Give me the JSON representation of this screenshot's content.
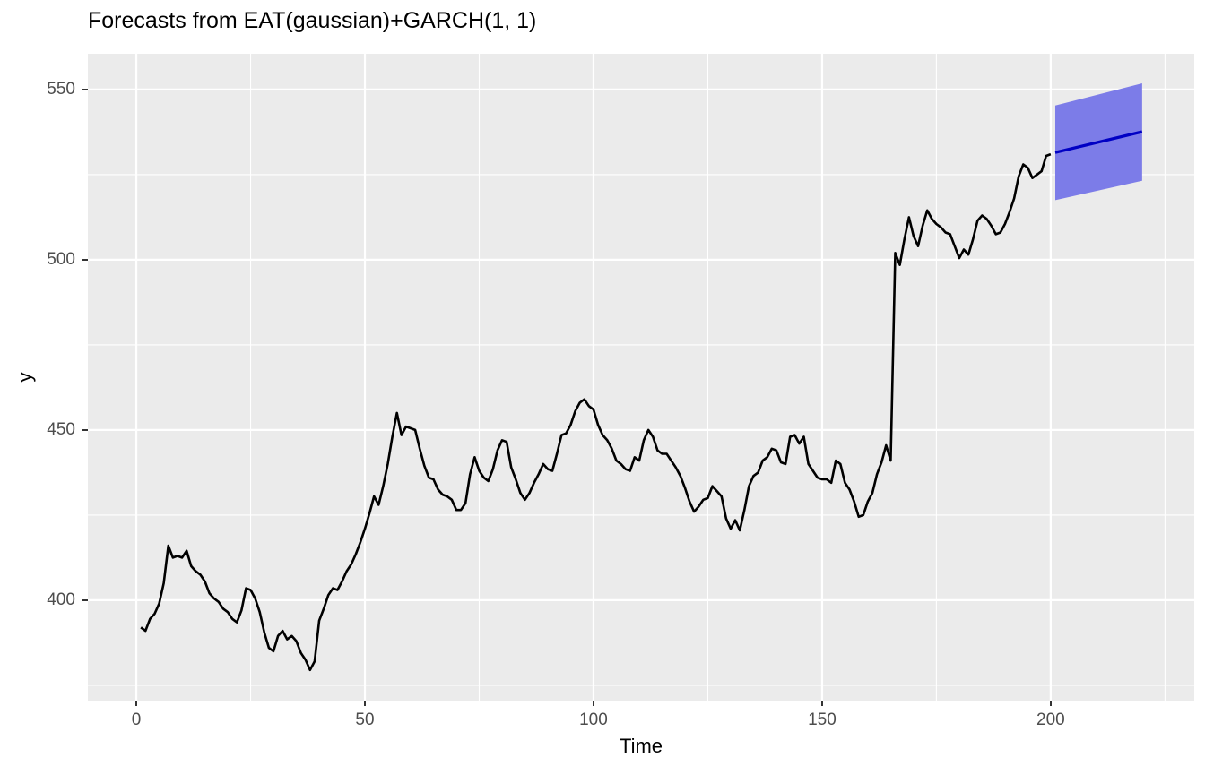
{
  "title": "Forecasts from EAT(gaussian)+GARCH(1, 1)",
  "colors": {
    "panel_background": "#EBEBEB",
    "grid_major": "#FFFFFF",
    "grid_minor": "#FFFFFF",
    "observed_line": "#000000",
    "forecast_ribbon": "#7C7CE8",
    "forecast_line": "#0000C4",
    "tick_label": "#4D4D4D",
    "tick_mark": "#333333",
    "title_color": "#000000"
  },
  "chart_data": {
    "type": "line",
    "title": "Forecasts from EAT(gaussian)+GARCH(1, 1)",
    "xlabel": "Time",
    "ylabel": "y",
    "xlim": [
      -10.6,
      231.4
    ],
    "ylim": [
      370.5,
      560.5
    ],
    "x_major_ticks": [
      0,
      50,
      100,
      150,
      200
    ],
    "x_minor_ticks": [
      25,
      75,
      125,
      175,
      225
    ],
    "y_major_ticks": [
      400,
      450,
      500,
      550
    ],
    "y_minor_ticks": [
      375,
      425,
      475,
      525
    ],
    "grid": "on",
    "legend_position": "none",
    "series": [
      {
        "name": "observed",
        "x_start": 1,
        "x_step": 1,
        "values": [
          392,
          391,
          394.5,
          396,
          399,
          405,
          416,
          412.5,
          413,
          412.5,
          414.5,
          410,
          408.5,
          407.5,
          405.5,
          402,
          400.5,
          399.5,
          397.5,
          396.5,
          394.5,
          393.5,
          397,
          403.5,
          403,
          400.5,
          396.5,
          390.5,
          386,
          385,
          389.5,
          391,
          388.5,
          389.5,
          388,
          384.5,
          382.5,
          379.5,
          382,
          394,
          397.5,
          401.5,
          403.5,
          403,
          405.5,
          408.5,
          410.5,
          413.5,
          417,
          421,
          425.5,
          430.5,
          428,
          433.5,
          440,
          448,
          455,
          448.5,
          451,
          450.5,
          450,
          444.5,
          439.5,
          436,
          435.5,
          432.5,
          431,
          430.5,
          429.5,
          426.5,
          426.5,
          428.5,
          437,
          442,
          438,
          436,
          435,
          438.5,
          444,
          447,
          446.5,
          439,
          435.5,
          431.5,
          429.5,
          431.5,
          434.5,
          437,
          440,
          438.5,
          438,
          443,
          448.5,
          449,
          451.5,
          455.5,
          458,
          459,
          457,
          456,
          451.5,
          448.5,
          447,
          444.5,
          441,
          440,
          438.5,
          438,
          442,
          441,
          447,
          450,
          448,
          444,
          443,
          443,
          441,
          439,
          436.5,
          433,
          429,
          426,
          427.5,
          429.5,
          430,
          433.5,
          432,
          430.5,
          424,
          421,
          423.5,
          420.5,
          426.5,
          433.5,
          436.5,
          437.5,
          441,
          442,
          444.5,
          444,
          440.5,
          440,
          448,
          448.5,
          446,
          448,
          440,
          438,
          436,
          435.5,
          435.5,
          434.5,
          441,
          440,
          434.5,
          432.5,
          429,
          424.5,
          425,
          429,
          431.5,
          437,
          440.5,
          445.5,
          441,
          502,
          498.5,
          506,
          512.5,
          507,
          504,
          510,
          514.5,
          512,
          510.5,
          509.5,
          508,
          507.5,
          504,
          500.5,
          503,
          501.5,
          506,
          511.5,
          513,
          512,
          510,
          507.5,
          508,
          510.5,
          514,
          518,
          524.5,
          528,
          527,
          524,
          525,
          526,
          530.5,
          531
        ]
      },
      {
        "name": "forecast-mean",
        "x": [
          201,
          220
        ],
        "values": [
          531.5,
          537.6
        ]
      }
    ],
    "ribbon": {
      "name": "forecast-interval",
      "x": [
        201,
        220
      ],
      "lower": [
        517.5,
        523.2
      ],
      "upper": [
        545.3,
        551.8
      ]
    }
  },
  "axis_labels": {
    "x": "Time",
    "y": "y"
  }
}
